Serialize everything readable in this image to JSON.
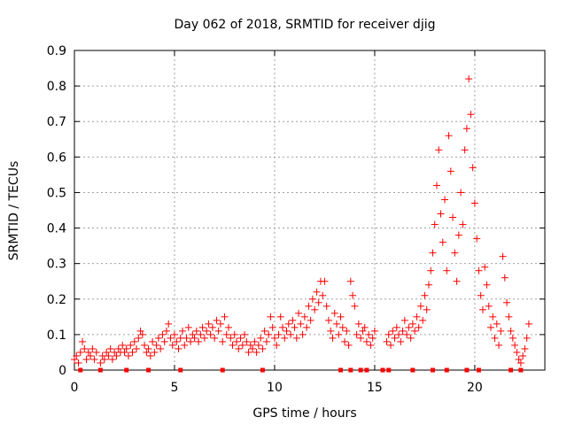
{
  "chart_data": {
    "type": "scatter",
    "title": "Day 062 of 2018, SRMTID for receiver djig",
    "xlabel": "GPS time / hours",
    "ylabel": "SRMTID / TECUs",
    "xlim": [
      0,
      23.5
    ],
    "ylim": [
      0,
      0.9
    ],
    "xticks": [
      "0",
      "5",
      "10",
      "15",
      "20"
    ],
    "yticks": [
      "0",
      "0.1",
      "0.2",
      "0.3",
      "0.4",
      "0.5",
      "0.6",
      "0.7",
      "0.8",
      "0.9"
    ],
    "xtick_values": [
      0,
      5,
      10,
      15,
      20
    ],
    "ytick_values": [
      0,
      0.1,
      0.2,
      0.3,
      0.4,
      0.5,
      0.6,
      0.7,
      0.8,
      0.9
    ],
    "grid": true,
    "marker_color": "#ff0000",
    "series": [
      {
        "name": "SRMTID",
        "marker": "plus",
        "points": [
          [
            0.0,
            0.03
          ],
          [
            0.1,
            0.04
          ],
          [
            0.2,
            0.02
          ],
          [
            0.3,
            0.05
          ],
          [
            0.4,
            0.08
          ],
          [
            0.5,
            0.06
          ],
          [
            0.6,
            0.03
          ],
          [
            0.7,
            0.05
          ],
          [
            0.8,
            0.04
          ],
          [
            0.9,
            0.06
          ],
          [
            1.0,
            0.03
          ],
          [
            1.1,
            0.05
          ],
          [
            1.3,
            0.02
          ],
          [
            1.4,
            0.04
          ],
          [
            1.5,
            0.03
          ],
          [
            1.6,
            0.05
          ],
          [
            1.7,
            0.04
          ],
          [
            1.8,
            0.06
          ],
          [
            1.9,
            0.03
          ],
          [
            2.0,
            0.05
          ],
          [
            2.1,
            0.04
          ],
          [
            2.2,
            0.06
          ],
          [
            2.3,
            0.05
          ],
          [
            2.4,
            0.07
          ],
          [
            2.5,
            0.05
          ],
          [
            2.6,
            0.06
          ],
          [
            2.7,
            0.04
          ],
          [
            2.8,
            0.07
          ],
          [
            2.9,
            0.05
          ],
          [
            3.0,
            0.08
          ],
          [
            3.1,
            0.06
          ],
          [
            3.2,
            0.09
          ],
          [
            3.3,
            0.11
          ],
          [
            3.4,
            0.1
          ],
          [
            3.5,
            0.07
          ],
          [
            3.6,
            0.05
          ],
          [
            3.7,
            0.06
          ],
          [
            3.8,
            0.04
          ],
          [
            3.9,
            0.08
          ],
          [
            4.0,
            0.05
          ],
          [
            4.1,
            0.07
          ],
          [
            4.2,
            0.09
          ],
          [
            4.3,
            0.06
          ],
          [
            4.4,
            0.1
          ],
          [
            4.5,
            0.08
          ],
          [
            4.6,
            0.11
          ],
          [
            4.7,
            0.13
          ],
          [
            4.8,
            0.09
          ],
          [
            4.9,
            0.07
          ],
          [
            5.0,
            0.1
          ],
          [
            5.1,
            0.08
          ],
          [
            5.2,
            0.06
          ],
          [
            5.3,
            0.09
          ],
          [
            5.4,
            0.11
          ],
          [
            5.5,
            0.07
          ],
          [
            5.6,
            0.09
          ],
          [
            5.7,
            0.12
          ],
          [
            5.8,
            0.08
          ],
          [
            5.9,
            0.1
          ],
          [
            6.0,
            0.09
          ],
          [
            6.1,
            0.11
          ],
          [
            6.2,
            0.08
          ],
          [
            6.3,
            0.1
          ],
          [
            6.4,
            0.12
          ],
          [
            6.5,
            0.09
          ],
          [
            6.6,
            0.11
          ],
          [
            6.7,
            0.13
          ],
          [
            6.8,
            0.1
          ],
          [
            6.9,
            0.12
          ],
          [
            7.0,
            0.09
          ],
          [
            7.1,
            0.14
          ],
          [
            7.2,
            0.11
          ],
          [
            7.3,
            0.13
          ],
          [
            7.4,
            0.08
          ],
          [
            7.5,
            0.15
          ],
          [
            7.6,
            0.1
          ],
          [
            7.7,
            0.12
          ],
          [
            7.8,
            0.09
          ],
          [
            7.9,
            0.07
          ],
          [
            8.0,
            0.1
          ],
          [
            8.1,
            0.08
          ],
          [
            8.2,
            0.06
          ],
          [
            8.3,
            0.09
          ],
          [
            8.4,
            0.07
          ],
          [
            8.5,
            0.1
          ],
          [
            8.6,
            0.08
          ],
          [
            8.7,
            0.05
          ],
          [
            8.8,
            0.07
          ],
          [
            8.9,
            0.06
          ],
          [
            9.0,
            0.08
          ],
          [
            9.1,
            0.05
          ],
          [
            9.2,
            0.07
          ],
          [
            9.3,
            0.09
          ],
          [
            9.4,
            0.06
          ],
          [
            9.5,
            0.11
          ],
          [
            9.6,
            0.08
          ],
          [
            9.7,
            0.1
          ],
          [
            9.8,
            0.15
          ],
          [
            9.9,
            0.12
          ],
          [
            10.0,
            0.09
          ],
          [
            10.1,
            0.07
          ],
          [
            10.2,
            0.1
          ],
          [
            10.3,
            0.15
          ],
          [
            10.4,
            0.12
          ],
          [
            10.5,
            0.09
          ],
          [
            10.6,
            0.11
          ],
          [
            10.7,
            0.13
          ],
          [
            10.8,
            0.1
          ],
          [
            10.9,
            0.14
          ],
          [
            11.0,
            0.12
          ],
          [
            11.1,
            0.09
          ],
          [
            11.2,
            0.16
          ],
          [
            11.3,
            0.13
          ],
          [
            11.4,
            0.1
          ],
          [
            11.5,
            0.15
          ],
          [
            11.6,
            0.12
          ],
          [
            11.7,
            0.18
          ],
          [
            11.8,
            0.14
          ],
          [
            11.9,
            0.2
          ],
          [
            12.0,
            0.17
          ],
          [
            12.1,
            0.22
          ],
          [
            12.2,
            0.19
          ],
          [
            12.3,
            0.25
          ],
          [
            12.4,
            0.21
          ],
          [
            12.5,
            0.25
          ],
          [
            12.6,
            0.18
          ],
          [
            12.7,
            0.14
          ],
          [
            12.8,
            0.11
          ],
          [
            12.9,
            0.09
          ],
          [
            13.0,
            0.16
          ],
          [
            13.1,
            0.13
          ],
          [
            13.2,
            0.1
          ],
          [
            13.3,
            0.15
          ],
          [
            13.4,
            0.12
          ],
          [
            13.5,
            0.08
          ],
          [
            13.6,
            0.11
          ],
          [
            13.7,
            0.07
          ],
          [
            13.8,
            0.25
          ],
          [
            13.9,
            0.21
          ],
          [
            14.0,
            0.18
          ],
          [
            14.1,
            0.1
          ],
          [
            14.2,
            0.13
          ],
          [
            14.3,
            0.09
          ],
          [
            14.4,
            0.11
          ],
          [
            14.5,
            0.12
          ],
          [
            14.6,
            0.08
          ],
          [
            14.7,
            0.1
          ],
          [
            14.8,
            0.07
          ],
          [
            14.9,
            0.09
          ],
          [
            15.0,
            0.11
          ],
          [
            15.6,
            0.08
          ],
          [
            15.7,
            0.1
          ],
          [
            15.8,
            0.07
          ],
          [
            15.9,
            0.11
          ],
          [
            16.0,
            0.09
          ],
          [
            16.1,
            0.12
          ],
          [
            16.2,
            0.1
          ],
          [
            16.3,
            0.08
          ],
          [
            16.4,
            0.11
          ],
          [
            16.5,
            0.14
          ],
          [
            16.6,
            0.1
          ],
          [
            16.7,
            0.12
          ],
          [
            16.8,
            0.09
          ],
          [
            16.9,
            0.13
          ],
          [
            17.0,
            0.11
          ],
          [
            17.1,
            0.15
          ],
          [
            17.2,
            0.12
          ],
          [
            17.3,
            0.18
          ],
          [
            17.4,
            0.14
          ],
          [
            17.5,
            0.21
          ],
          [
            17.6,
            0.17
          ],
          [
            17.7,
            0.24
          ],
          [
            17.8,
            0.28
          ],
          [
            17.9,
            0.33
          ],
          [
            18.0,
            0.41
          ],
          [
            18.1,
            0.52
          ],
          [
            18.2,
            0.62
          ],
          [
            18.3,
            0.44
          ],
          [
            18.4,
            0.36
          ],
          [
            18.5,
            0.48
          ],
          [
            18.6,
            0.28
          ],
          [
            18.7,
            0.66
          ],
          [
            18.8,
            0.56
          ],
          [
            18.9,
            0.43
          ],
          [
            19.0,
            0.33
          ],
          [
            19.1,
            0.25
          ],
          [
            19.2,
            0.38
          ],
          [
            19.3,
            0.5
          ],
          [
            19.4,
            0.41
          ],
          [
            19.5,
            0.62
          ],
          [
            19.6,
            0.68
          ],
          [
            19.7,
            0.82
          ],
          [
            19.8,
            0.72
          ],
          [
            19.9,
            0.57
          ],
          [
            20.0,
            0.47
          ],
          [
            20.1,
            0.37
          ],
          [
            20.2,
            0.28
          ],
          [
            20.3,
            0.21
          ],
          [
            20.4,
            0.17
          ],
          [
            20.5,
            0.29
          ],
          [
            20.6,
            0.24
          ],
          [
            20.7,
            0.18
          ],
          [
            20.8,
            0.12
          ],
          [
            20.9,
            0.15
          ],
          [
            21.0,
            0.09
          ],
          [
            21.1,
            0.13
          ],
          [
            21.2,
            0.07
          ],
          [
            21.3,
            0.11
          ],
          [
            21.4,
            0.32
          ],
          [
            21.5,
            0.26
          ],
          [
            21.6,
            0.19
          ],
          [
            21.7,
            0.15
          ],
          [
            21.8,
            0.11
          ],
          [
            21.9,
            0.09
          ],
          [
            22.0,
            0.07
          ],
          [
            22.1,
            0.05
          ],
          [
            22.2,
            0.03
          ],
          [
            22.3,
            0.02
          ],
          [
            22.4,
            0.04
          ],
          [
            22.5,
            0.06
          ],
          [
            22.6,
            0.09
          ],
          [
            22.7,
            0.13
          ]
        ]
      }
    ],
    "baseline_markers": [
      0.3,
      1.3,
      2.6,
      3.7,
      5.3,
      7.4,
      9.4,
      13.3,
      13.8,
      14.3,
      14.6,
      15.4,
      15.7,
      16.9,
      17.9,
      18.6,
      19.6,
      20.2,
      21.8,
      22.3
    ]
  }
}
